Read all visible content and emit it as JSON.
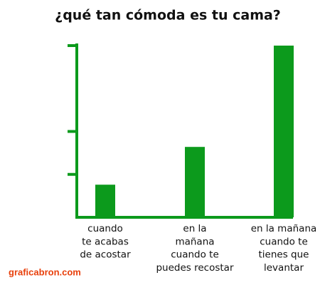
{
  "chart_data": {
    "type": "bar",
    "title": "¿qué tan cómoda es tu cama?",
    "categories": [
      "cuando\nte acabas\nde acostar",
      "en la\nmañana\ncuando te\npuedes recostar",
      "en la mañana\ncuando te\ntienes que\nlevantar"
    ],
    "values": [
      19,
      41,
      100
    ],
    "color": "#0c9a1c",
    "ylim": [
      0,
      100
    ],
    "yticks": [
      25,
      50,
      100
    ],
    "grid": false,
    "watermark": "graficabron.com"
  }
}
